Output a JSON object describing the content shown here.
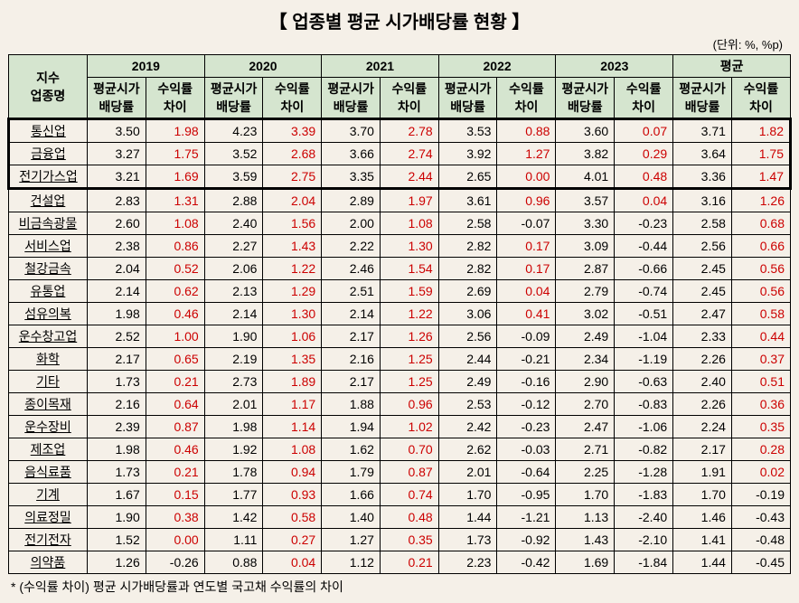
{
  "title": "【 업종별 평균 시가배당률 현황 】",
  "unit": "(단위: %, %p)",
  "footnote": "* (수익률 차이) 평균 시가배당률과 연도별 국고채 수익률의 차이",
  "headers": {
    "col1_line1": "지수",
    "col1_line2": "업종명",
    "years": [
      "2019",
      "2020",
      "2021",
      "2022",
      "2023",
      "평균"
    ],
    "sub1": "평균시가",
    "sub1_line2": "배당률",
    "sub2": "수익률",
    "sub2_line2": "차이"
  },
  "rows": [
    {
      "label": "통신업",
      "highlight": true,
      "data": [
        {
          "v": "3.50",
          "red": false
        },
        {
          "v": "1.98",
          "red": true
        },
        {
          "v": "4.23",
          "red": false
        },
        {
          "v": "3.39",
          "red": true
        },
        {
          "v": "3.70",
          "red": false
        },
        {
          "v": "2.78",
          "red": true
        },
        {
          "v": "3.53",
          "red": false
        },
        {
          "v": "0.88",
          "red": true
        },
        {
          "v": "3.60",
          "red": false
        },
        {
          "v": "0.07",
          "red": true
        },
        {
          "v": "3.71",
          "red": false
        },
        {
          "v": "1.82",
          "red": true
        }
      ]
    },
    {
      "label": "금융업",
      "highlight": true,
      "data": [
        {
          "v": "3.27",
          "red": false
        },
        {
          "v": "1.75",
          "red": true
        },
        {
          "v": "3.52",
          "red": false
        },
        {
          "v": "2.68",
          "red": true
        },
        {
          "v": "3.66",
          "red": false
        },
        {
          "v": "2.74",
          "red": true
        },
        {
          "v": "3.92",
          "red": false
        },
        {
          "v": "1.27",
          "red": true
        },
        {
          "v": "3.82",
          "red": false
        },
        {
          "v": "0.29",
          "red": true
        },
        {
          "v": "3.64",
          "red": false
        },
        {
          "v": "1.75",
          "red": true
        }
      ]
    },
    {
      "label": "전기가스업",
      "highlight": true,
      "last_highlight": true,
      "data": [
        {
          "v": "3.21",
          "red": false
        },
        {
          "v": "1.69",
          "red": true
        },
        {
          "v": "3.59",
          "red": false
        },
        {
          "v": "2.75",
          "red": true
        },
        {
          "v": "3.35",
          "red": false
        },
        {
          "v": "2.44",
          "red": true
        },
        {
          "v": "2.65",
          "red": false
        },
        {
          "v": "0.00",
          "red": true
        },
        {
          "v": "4.01",
          "red": false
        },
        {
          "v": "0.48",
          "red": true
        },
        {
          "v": "3.36",
          "red": false
        },
        {
          "v": "1.47",
          "red": true
        }
      ]
    },
    {
      "label": "건설업",
      "data": [
        {
          "v": "2.83",
          "red": false
        },
        {
          "v": "1.31",
          "red": true
        },
        {
          "v": "2.88",
          "red": false
        },
        {
          "v": "2.04",
          "red": true
        },
        {
          "v": "2.89",
          "red": false
        },
        {
          "v": "1.97",
          "red": true
        },
        {
          "v": "3.61",
          "red": false
        },
        {
          "v": "0.96",
          "red": true
        },
        {
          "v": "3.57",
          "red": false
        },
        {
          "v": "0.04",
          "red": true
        },
        {
          "v": "3.16",
          "red": false
        },
        {
          "v": "1.26",
          "red": true
        }
      ]
    },
    {
      "label": "비금속광물",
      "data": [
        {
          "v": "2.60",
          "red": false
        },
        {
          "v": "1.08",
          "red": true
        },
        {
          "v": "2.40",
          "red": false
        },
        {
          "v": "1.56",
          "red": true
        },
        {
          "v": "2.00",
          "red": false
        },
        {
          "v": "1.08",
          "red": true
        },
        {
          "v": "2.58",
          "red": false
        },
        {
          "v": "-0.07",
          "red": false
        },
        {
          "v": "3.30",
          "red": false
        },
        {
          "v": "-0.23",
          "red": false
        },
        {
          "v": "2.58",
          "red": false
        },
        {
          "v": "0.68",
          "red": true
        }
      ]
    },
    {
      "label": "서비스업",
      "data": [
        {
          "v": "2.38",
          "red": false
        },
        {
          "v": "0.86",
          "red": true
        },
        {
          "v": "2.27",
          "red": false
        },
        {
          "v": "1.43",
          "red": true
        },
        {
          "v": "2.22",
          "red": false
        },
        {
          "v": "1.30",
          "red": true
        },
        {
          "v": "2.82",
          "red": false
        },
        {
          "v": "0.17",
          "red": true
        },
        {
          "v": "3.09",
          "red": false
        },
        {
          "v": "-0.44",
          "red": false
        },
        {
          "v": "2.56",
          "red": false
        },
        {
          "v": "0.66",
          "red": true
        }
      ]
    },
    {
      "label": "철강금속",
      "data": [
        {
          "v": "2.04",
          "red": false
        },
        {
          "v": "0.52",
          "red": true
        },
        {
          "v": "2.06",
          "red": false
        },
        {
          "v": "1.22",
          "red": true
        },
        {
          "v": "2.46",
          "red": false
        },
        {
          "v": "1.54",
          "red": true
        },
        {
          "v": "2.82",
          "red": false
        },
        {
          "v": "0.17",
          "red": true
        },
        {
          "v": "2.87",
          "red": false
        },
        {
          "v": "-0.66",
          "red": false
        },
        {
          "v": "2.45",
          "red": false
        },
        {
          "v": "0.56",
          "red": true
        }
      ]
    },
    {
      "label": "유통업",
      "data": [
        {
          "v": "2.14",
          "red": false
        },
        {
          "v": "0.62",
          "red": true
        },
        {
          "v": "2.13",
          "red": false
        },
        {
          "v": "1.29",
          "red": true
        },
        {
          "v": "2.51",
          "red": false
        },
        {
          "v": "1.59",
          "red": true
        },
        {
          "v": "2.69",
          "red": false
        },
        {
          "v": "0.04",
          "red": true
        },
        {
          "v": "2.79",
          "red": false
        },
        {
          "v": "-0.74",
          "red": false
        },
        {
          "v": "2.45",
          "red": false
        },
        {
          "v": "0.56",
          "red": true
        }
      ]
    },
    {
      "label": "섬유의복",
      "data": [
        {
          "v": "1.98",
          "red": false
        },
        {
          "v": "0.46",
          "red": true
        },
        {
          "v": "2.14",
          "red": false
        },
        {
          "v": "1.30",
          "red": true
        },
        {
          "v": "2.14",
          "red": false
        },
        {
          "v": "1.22",
          "red": true
        },
        {
          "v": "3.06",
          "red": false
        },
        {
          "v": "0.41",
          "red": true
        },
        {
          "v": "3.02",
          "red": false
        },
        {
          "v": "-0.51",
          "red": false
        },
        {
          "v": "2.47",
          "red": false
        },
        {
          "v": "0.58",
          "red": true
        }
      ]
    },
    {
      "label": "운수창고업",
      "data": [
        {
          "v": "2.52",
          "red": false
        },
        {
          "v": "1.00",
          "red": true
        },
        {
          "v": "1.90",
          "red": false
        },
        {
          "v": "1.06",
          "red": true
        },
        {
          "v": "2.17",
          "red": false
        },
        {
          "v": "1.26",
          "red": true
        },
        {
          "v": "2.56",
          "red": false
        },
        {
          "v": "-0.09",
          "red": false
        },
        {
          "v": "2.49",
          "red": false
        },
        {
          "v": "-1.04",
          "red": false
        },
        {
          "v": "2.33",
          "red": false
        },
        {
          "v": "0.44",
          "red": true
        }
      ]
    },
    {
      "label": "화학",
      "data": [
        {
          "v": "2.17",
          "red": false
        },
        {
          "v": "0.65",
          "red": true
        },
        {
          "v": "2.19",
          "red": false
        },
        {
          "v": "1.35",
          "red": true
        },
        {
          "v": "2.16",
          "red": false
        },
        {
          "v": "1.25",
          "red": true
        },
        {
          "v": "2.44",
          "red": false
        },
        {
          "v": "-0.21",
          "red": false
        },
        {
          "v": "2.34",
          "red": false
        },
        {
          "v": "-1.19",
          "red": false
        },
        {
          "v": "2.26",
          "red": false
        },
        {
          "v": "0.37",
          "red": true
        }
      ]
    },
    {
      "label": "기타",
      "data": [
        {
          "v": "1.73",
          "red": false
        },
        {
          "v": "0.21",
          "red": true
        },
        {
          "v": "2.73",
          "red": false
        },
        {
          "v": "1.89",
          "red": true
        },
        {
          "v": "2.17",
          "red": false
        },
        {
          "v": "1.25",
          "red": true
        },
        {
          "v": "2.49",
          "red": false
        },
        {
          "v": "-0.16",
          "red": false
        },
        {
          "v": "2.90",
          "red": false
        },
        {
          "v": "-0.63",
          "red": false
        },
        {
          "v": "2.40",
          "red": false
        },
        {
          "v": "0.51",
          "red": true
        }
      ]
    },
    {
      "label": "종이목재",
      "data": [
        {
          "v": "2.16",
          "red": false
        },
        {
          "v": "0.64",
          "red": true
        },
        {
          "v": "2.01",
          "red": false
        },
        {
          "v": "1.17",
          "red": true
        },
        {
          "v": "1.88",
          "red": false
        },
        {
          "v": "0.96",
          "red": true
        },
        {
          "v": "2.53",
          "red": false
        },
        {
          "v": "-0.12",
          "red": false
        },
        {
          "v": "2.70",
          "red": false
        },
        {
          "v": "-0.83",
          "red": false
        },
        {
          "v": "2.26",
          "red": false
        },
        {
          "v": "0.36",
          "red": true
        }
      ]
    },
    {
      "label": "운수장비",
      "data": [
        {
          "v": "2.39",
          "red": false
        },
        {
          "v": "0.87",
          "red": true
        },
        {
          "v": "1.98",
          "red": false
        },
        {
          "v": "1.14",
          "red": true
        },
        {
          "v": "1.94",
          "red": false
        },
        {
          "v": "1.02",
          "red": true
        },
        {
          "v": "2.42",
          "red": false
        },
        {
          "v": "-0.23",
          "red": false
        },
        {
          "v": "2.47",
          "red": false
        },
        {
          "v": "-1.06",
          "red": false
        },
        {
          "v": "2.24",
          "red": false
        },
        {
          "v": "0.35",
          "red": true
        }
      ]
    },
    {
      "label": "제조업",
      "data": [
        {
          "v": "1.98",
          "red": false
        },
        {
          "v": "0.46",
          "red": true
        },
        {
          "v": "1.92",
          "red": false
        },
        {
          "v": "1.08",
          "red": true
        },
        {
          "v": "1.62",
          "red": false
        },
        {
          "v": "0.70",
          "red": true
        },
        {
          "v": "2.62",
          "red": false
        },
        {
          "v": "-0.03",
          "red": false
        },
        {
          "v": "2.71",
          "red": false
        },
        {
          "v": "-0.82",
          "red": false
        },
        {
          "v": "2.17",
          "red": false
        },
        {
          "v": "0.28",
          "red": true
        }
      ]
    },
    {
      "label": "음식료품",
      "data": [
        {
          "v": "1.73",
          "red": false
        },
        {
          "v": "0.21",
          "red": true
        },
        {
          "v": "1.78",
          "red": false
        },
        {
          "v": "0.94",
          "red": true
        },
        {
          "v": "1.79",
          "red": false
        },
        {
          "v": "0.87",
          "red": true
        },
        {
          "v": "2.01",
          "red": false
        },
        {
          "v": "-0.64",
          "red": false
        },
        {
          "v": "2.25",
          "red": false
        },
        {
          "v": "-1.28",
          "red": false
        },
        {
          "v": "1.91",
          "red": false
        },
        {
          "v": "0.02",
          "red": true
        }
      ]
    },
    {
      "label": "기계",
      "data": [
        {
          "v": "1.67",
          "red": false
        },
        {
          "v": "0.15",
          "red": true
        },
        {
          "v": "1.77",
          "red": false
        },
        {
          "v": "0.93",
          "red": true
        },
        {
          "v": "1.66",
          "red": false
        },
        {
          "v": "0.74",
          "red": true
        },
        {
          "v": "1.70",
          "red": false
        },
        {
          "v": "-0.95",
          "red": false
        },
        {
          "v": "1.70",
          "red": false
        },
        {
          "v": "-1.83",
          "red": false
        },
        {
          "v": "1.70",
          "red": false
        },
        {
          "v": "-0.19",
          "red": false
        }
      ]
    },
    {
      "label": "의료정밀",
      "data": [
        {
          "v": "1.90",
          "red": false
        },
        {
          "v": "0.38",
          "red": true
        },
        {
          "v": "1.42",
          "red": false
        },
        {
          "v": "0.58",
          "red": true
        },
        {
          "v": "1.40",
          "red": false
        },
        {
          "v": "0.48",
          "red": true
        },
        {
          "v": "1.44",
          "red": false
        },
        {
          "v": "-1.21",
          "red": false
        },
        {
          "v": "1.13",
          "red": false
        },
        {
          "v": "-2.40",
          "red": false
        },
        {
          "v": "1.46",
          "red": false
        },
        {
          "v": "-0.43",
          "red": false
        }
      ]
    },
    {
      "label": "전기전자",
      "data": [
        {
          "v": "1.52",
          "red": false
        },
        {
          "v": "0.00",
          "red": true
        },
        {
          "v": "1.11",
          "red": false
        },
        {
          "v": "0.27",
          "red": true
        },
        {
          "v": "1.27",
          "red": false
        },
        {
          "v": "0.35",
          "red": true
        },
        {
          "v": "1.73",
          "red": false
        },
        {
          "v": "-0.92",
          "red": false
        },
        {
          "v": "1.43",
          "red": false
        },
        {
          "v": "-2.10",
          "red": false
        },
        {
          "v": "1.41",
          "red": false
        },
        {
          "v": "-0.48",
          "red": false
        }
      ]
    },
    {
      "label": "의약품",
      "data": [
        {
          "v": "1.26",
          "red": false
        },
        {
          "v": "-0.26",
          "red": false
        },
        {
          "v": "0.88",
          "red": false
        },
        {
          "v": "0.04",
          "red": true
        },
        {
          "v": "1.12",
          "red": false
        },
        {
          "v": "0.21",
          "red": true
        },
        {
          "v": "2.23",
          "red": false
        },
        {
          "v": "-0.42",
          "red": false
        },
        {
          "v": "1.69",
          "red": false
        },
        {
          "v": "-1.84",
          "red": false
        },
        {
          "v": "1.44",
          "red": false
        },
        {
          "v": "-0.45",
          "red": false
        }
      ]
    }
  ]
}
